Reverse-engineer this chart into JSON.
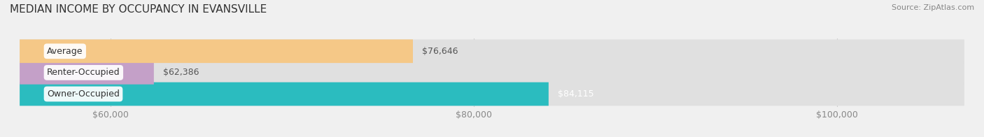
{
  "title": "MEDIAN INCOME BY OCCUPANCY IN EVANSVILLE",
  "source": "Source: ZipAtlas.com",
  "categories": [
    "Owner-Occupied",
    "Renter-Occupied",
    "Average"
  ],
  "values": [
    84115,
    62386,
    76646
  ],
  "labels": [
    "$84,115",
    "$62,386",
    "$76,646"
  ],
  "bar_colors": [
    "#2bbcbf",
    "#c4a0c8",
    "#f5c887"
  ],
  "bar_height": 0.55,
  "xlim": [
    55000,
    107000
  ],
  "xticks": [
    60000,
    80000,
    100000
  ],
  "xtick_labels": [
    "$60,000",
    "$80,000",
    "$100,000"
  ],
  "background_color": "#f0f0f0",
  "bar_bg_color": "#e0e0e0",
  "title_fontsize": 11,
  "source_fontsize": 8,
  "label_fontsize": 9,
  "tick_fontsize": 9,
  "label_colors": [
    "white",
    "#555555",
    "#555555"
  ]
}
